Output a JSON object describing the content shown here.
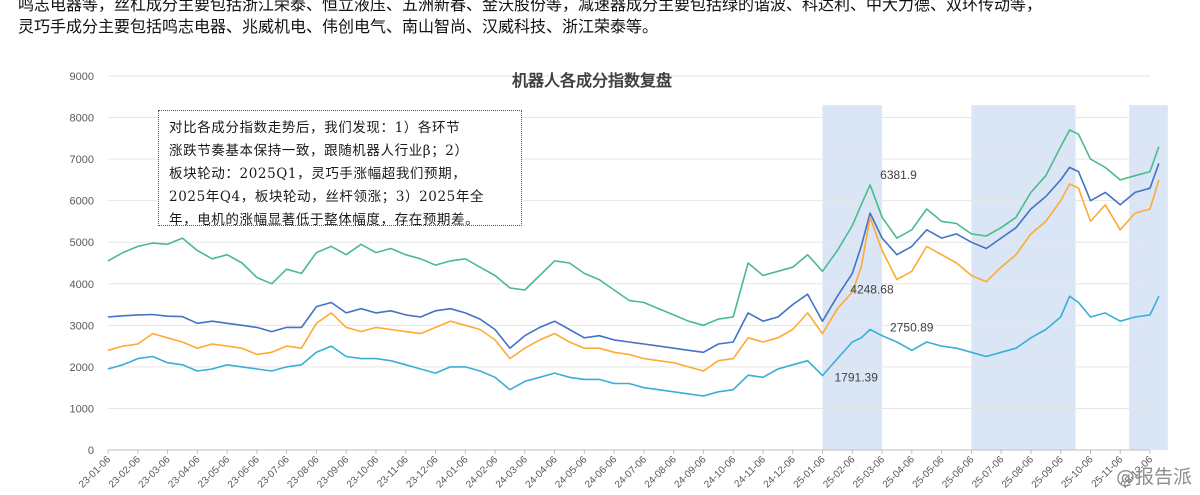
{
  "intro": {
    "line1": "鸣志电器等，丝杠成分主要包括浙江荣泰、恒立液压、五洲新春、金沃股份等，减速器成分主要包括绿的谐波、科达利、中大力德、双环传动等，",
    "line2": "灵巧手成分主要包括鸣志电器、兆威机电、伟创电气、南山智尚、汉威科技、浙江荣泰等。"
  },
  "note": {
    "lines": [
      "对比各成分指数走势后，我们发现：1）各环节",
      "涨跌节奏基本保持一致，跟随机器人行业β；2）",
      "板块轮动：2025Q1，灵巧手涨幅超我们预期，",
      "2025年Q4，板块轮动，丝杆领涨；3）2025年全",
      "年，电机的涨幅显著低于整体幅度，存在预期差。"
    ]
  },
  "watermark": "@报告派",
  "chart_data": {
    "type": "line",
    "title": "机器人各成分指数复盘",
    "ylim": [
      0,
      9000
    ],
    "yticks": [
      0,
      1000,
      2000,
      3000,
      4000,
      5000,
      6000,
      7000,
      8000,
      9000
    ],
    "x_range": [
      "2023-01",
      "2025-12"
    ],
    "x_ticks": [
      "23-01-06",
      "23-02-06",
      "23-03-06",
      "23-04-06",
      "23-05-06",
      "23-06-06",
      "23-07-06",
      "23-08-06",
      "23-09-06",
      "23-10-06",
      "23-11-06",
      "23-12-06",
      "24-01-06",
      "24-02-06",
      "24-03-06",
      "24-04-06",
      "24-05-06",
      "24-06-06",
      "24-07-06",
      "24-08-06",
      "24-09-06",
      "24-10-06",
      "24-11-06",
      "24-12-06",
      "25-01-06",
      "25-02-06",
      "25-03-06",
      "25-04-06",
      "25-05-06",
      "25-06-06",
      "25-07-06",
      "25-08-06",
      "25-09-06",
      "25-10-06",
      "25-11-06",
      "25-12-06"
    ],
    "shaded_ranges": [
      [
        24.0,
        26.0
      ],
      [
        29.0,
        32.5
      ],
      [
        34.3,
        35.6
      ]
    ],
    "grid": true,
    "legend": "none",
    "colors": {
      "green": "#4cbb8a",
      "blue": "#4472c4",
      "orange": "#ffaa33",
      "cyan": "#3aaed8",
      "shade": "#dae6f6"
    },
    "series": [
      {
        "color": "green",
        "points": [
          [
            0,
            4550
          ],
          [
            0.5,
            4750
          ],
          [
            1,
            4900
          ],
          [
            1.5,
            4980
          ],
          [
            2,
            4950
          ],
          [
            2.5,
            5100
          ],
          [
            3,
            4800
          ],
          [
            3.5,
            4600
          ],
          [
            4,
            4700
          ],
          [
            4.5,
            4500
          ],
          [
            5,
            4150
          ],
          [
            5.5,
            4000
          ],
          [
            6,
            4350
          ],
          [
            6.5,
            4250
          ],
          [
            7,
            4750
          ],
          [
            7.5,
            4900
          ],
          [
            8,
            4700
          ],
          [
            8.5,
            4950
          ],
          [
            9,
            4750
          ],
          [
            9.5,
            4850
          ],
          [
            10,
            4700
          ],
          [
            10.5,
            4600
          ],
          [
            11,
            4450
          ],
          [
            11.5,
            4550
          ],
          [
            12,
            4600
          ],
          [
            12.5,
            4400
          ],
          [
            13,
            4200
          ],
          [
            13.5,
            3900
          ],
          [
            14,
            3850
          ],
          [
            14.5,
            4200
          ],
          [
            15,
            4550
          ],
          [
            15.5,
            4500
          ],
          [
            16,
            4250
          ],
          [
            16.5,
            4100
          ],
          [
            17,
            3850
          ],
          [
            17.5,
            3600
          ],
          [
            18,
            3550
          ],
          [
            18.5,
            3400
          ],
          [
            19,
            3250
          ],
          [
            19.5,
            3100
          ],
          [
            20,
            3000
          ],
          [
            20.5,
            3150
          ],
          [
            21,
            3200
          ],
          [
            21.5,
            4500
          ],
          [
            22,
            4200
          ],
          [
            22.5,
            4300
          ],
          [
            23,
            4400
          ],
          [
            23.5,
            4700
          ],
          [
            24,
            4300
          ],
          [
            24.5,
            4800
          ],
          [
            25,
            5400
          ],
          [
            25.3,
            5900
          ],
          [
            25.6,
            6381.9
          ],
          [
            26,
            5600
          ],
          [
            26.5,
            5100
          ],
          [
            27,
            5300
          ],
          [
            27.5,
            5800
          ],
          [
            28,
            5500
          ],
          [
            28.5,
            5450
          ],
          [
            29,
            5200
          ],
          [
            29.5,
            5150
          ],
          [
            30,
            5350
          ],
          [
            30.5,
            5600
          ],
          [
            31,
            6200
          ],
          [
            31.5,
            6600
          ],
          [
            32,
            7300
          ],
          [
            32.3,
            7700
          ],
          [
            32.6,
            7600
          ],
          [
            33,
            7000
          ],
          [
            33.5,
            6800
          ],
          [
            34,
            6500
          ],
          [
            34.5,
            6600
          ],
          [
            35,
            6700
          ],
          [
            35.3,
            7300
          ]
        ]
      },
      {
        "color": "blue",
        "points": [
          [
            0,
            3200
          ],
          [
            0.5,
            3230
          ],
          [
            1,
            3250
          ],
          [
            1.5,
            3260
          ],
          [
            2,
            3220
          ],
          [
            2.5,
            3210
          ],
          [
            3,
            3050
          ],
          [
            3.5,
            3100
          ],
          [
            4,
            3050
          ],
          [
            4.5,
            3000
          ],
          [
            5,
            2950
          ],
          [
            5.5,
            2850
          ],
          [
            6,
            2950
          ],
          [
            6.5,
            2950
          ],
          [
            7,
            3450
          ],
          [
            7.5,
            3550
          ],
          [
            8,
            3300
          ],
          [
            8.5,
            3400
          ],
          [
            9,
            3300
          ],
          [
            9.5,
            3350
          ],
          [
            10,
            3250
          ],
          [
            10.5,
            3200
          ],
          [
            11,
            3350
          ],
          [
            11.5,
            3400
          ],
          [
            12,
            3300
          ],
          [
            12.5,
            3150
          ],
          [
            13,
            2900
          ],
          [
            13.5,
            2450
          ],
          [
            14,
            2750
          ],
          [
            14.5,
            2950
          ],
          [
            15,
            3100
          ],
          [
            15.5,
            2900
          ],
          [
            16,
            2700
          ],
          [
            16.5,
            2750
          ],
          [
            17,
            2650
          ],
          [
            17.5,
            2600
          ],
          [
            18,
            2550
          ],
          [
            18.5,
            2500
          ],
          [
            19,
            2450
          ],
          [
            19.5,
            2400
          ],
          [
            20,
            2350
          ],
          [
            20.5,
            2550
          ],
          [
            21,
            2600
          ],
          [
            21.5,
            3300
          ],
          [
            22,
            3100
          ],
          [
            22.5,
            3200
          ],
          [
            23,
            3500
          ],
          [
            23.5,
            3750
          ],
          [
            24,
            3100
          ],
          [
            24.5,
            3700
          ],
          [
            25,
            4248.68
          ],
          [
            25.3,
            4900
          ],
          [
            25.6,
            5700
          ],
          [
            26,
            5100
          ],
          [
            26.5,
            4700
          ],
          [
            27,
            4900
          ],
          [
            27.5,
            5300
          ],
          [
            28,
            5100
          ],
          [
            28.5,
            5200
          ],
          [
            29,
            5000
          ],
          [
            29.5,
            4850
          ],
          [
            30,
            5100
          ],
          [
            30.5,
            5350
          ],
          [
            31,
            5800
          ],
          [
            31.5,
            6100
          ],
          [
            32,
            6500
          ],
          [
            32.3,
            6800
          ],
          [
            32.6,
            6700
          ],
          [
            33,
            6000
          ],
          [
            33.5,
            6200
          ],
          [
            34,
            5900
          ],
          [
            34.5,
            6200
          ],
          [
            35,
            6300
          ],
          [
            35.3,
            6900
          ]
        ]
      },
      {
        "color": "orange",
        "points": [
          [
            0,
            2400
          ],
          [
            0.5,
            2500
          ],
          [
            1,
            2550
          ],
          [
            1.5,
            2800
          ],
          [
            2,
            2700
          ],
          [
            2.5,
            2600
          ],
          [
            3,
            2450
          ],
          [
            3.5,
            2550
          ],
          [
            4,
            2500
          ],
          [
            4.5,
            2450
          ],
          [
            5,
            2300
          ],
          [
            5.5,
            2350
          ],
          [
            6,
            2500
          ],
          [
            6.5,
            2450
          ],
          [
            7,
            3050
          ],
          [
            7.5,
            3300
          ],
          [
            8,
            2950
          ],
          [
            8.5,
            2850
          ],
          [
            9,
            2950
          ],
          [
            9.5,
            2900
          ],
          [
            10,
            2850
          ],
          [
            10.5,
            2800
          ],
          [
            11,
            2950
          ],
          [
            11.5,
            3100
          ],
          [
            12,
            3000
          ],
          [
            12.5,
            2900
          ],
          [
            13,
            2650
          ],
          [
            13.5,
            2200
          ],
          [
            14,
            2450
          ],
          [
            14.5,
            2650
          ],
          [
            15,
            2800
          ],
          [
            15.5,
            2600
          ],
          [
            16,
            2450
          ],
          [
            16.5,
            2450
          ],
          [
            17,
            2350
          ],
          [
            17.5,
            2300
          ],
          [
            18,
            2200
          ],
          [
            18.5,
            2150
          ],
          [
            19,
            2100
          ],
          [
            19.5,
            2000
          ],
          [
            20,
            1900
          ],
          [
            20.5,
            2150
          ],
          [
            21,
            2200
          ],
          [
            21.5,
            2700
          ],
          [
            22,
            2600
          ],
          [
            22.5,
            2700
          ],
          [
            23,
            2900
          ],
          [
            23.5,
            3300
          ],
          [
            24,
            2800
          ],
          [
            24.5,
            3400
          ],
          [
            25,
            3800
          ],
          [
            25.3,
            4400
          ],
          [
            25.6,
            5600
          ],
          [
            26,
            4800
          ],
          [
            26.5,
            4100
          ],
          [
            27,
            4300
          ],
          [
            27.5,
            4900
          ],
          [
            28,
            4700
          ],
          [
            28.5,
            4500
          ],
          [
            29,
            4200
          ],
          [
            29.5,
            4050
          ],
          [
            30,
            4400
          ],
          [
            30.5,
            4700
          ],
          [
            31,
            5200
          ],
          [
            31.5,
            5500
          ],
          [
            32,
            6000
          ],
          [
            32.3,
            6400
          ],
          [
            32.6,
            6300
          ],
          [
            33,
            5500
          ],
          [
            33.5,
            5900
          ],
          [
            34,
            5300
          ],
          [
            34.5,
            5700
          ],
          [
            35,
            5800
          ],
          [
            35.3,
            6500
          ]
        ]
      },
      {
        "color": "cyan",
        "points": [
          [
            0,
            1950
          ],
          [
            0.5,
            2050
          ],
          [
            1,
            2200
          ],
          [
            1.5,
            2250
          ],
          [
            2,
            2100
          ],
          [
            2.5,
            2050
          ],
          [
            3,
            1900
          ],
          [
            3.5,
            1950
          ],
          [
            4,
            2050
          ],
          [
            4.5,
            2000
          ],
          [
            5,
            1950
          ],
          [
            5.5,
            1900
          ],
          [
            6,
            2000
          ],
          [
            6.5,
            2050
          ],
          [
            7,
            2350
          ],
          [
            7.5,
            2500
          ],
          [
            8,
            2250
          ],
          [
            8.5,
            2200
          ],
          [
            9,
            2200
          ],
          [
            9.5,
            2150
          ],
          [
            10,
            2050
          ],
          [
            10.5,
            1950
          ],
          [
            11,
            1850
          ],
          [
            11.5,
            2000
          ],
          [
            12,
            2000
          ],
          [
            12.5,
            1900
          ],
          [
            13,
            1750
          ],
          [
            13.5,
            1450
          ],
          [
            14,
            1650
          ],
          [
            14.5,
            1750
          ],
          [
            15,
            1850
          ],
          [
            15.5,
            1750
          ],
          [
            16,
            1700
          ],
          [
            16.5,
            1700
          ],
          [
            17,
            1600
          ],
          [
            17.5,
            1600
          ],
          [
            18,
            1500
          ],
          [
            18.5,
            1450
          ],
          [
            19,
            1400
          ],
          [
            19.5,
            1350
          ],
          [
            20,
            1300
          ],
          [
            20.5,
            1400
          ],
          [
            21,
            1450
          ],
          [
            21.5,
            1800
          ],
          [
            22,
            1750
          ],
          [
            22.5,
            1950
          ],
          [
            23,
            2050
          ],
          [
            23.5,
            2150
          ],
          [
            24,
            1791.39
          ],
          [
            24.5,
            2200
          ],
          [
            25,
            2600
          ],
          [
            25.3,
            2700
          ],
          [
            25.6,
            2900
          ],
          [
            26,
            2750.89
          ],
          [
            26.5,
            2600
          ],
          [
            27,
            2400
          ],
          [
            27.5,
            2600
          ],
          [
            28,
            2500
          ],
          [
            28.5,
            2450
          ],
          [
            29,
            2350
          ],
          [
            29.5,
            2250
          ],
          [
            30,
            2350
          ],
          [
            30.5,
            2450
          ],
          [
            31,
            2700
          ],
          [
            31.5,
            2900
          ],
          [
            32,
            3200
          ],
          [
            32.3,
            3700
          ],
          [
            32.6,
            3550
          ],
          [
            33,
            3200
          ],
          [
            33.5,
            3300
          ],
          [
            34,
            3100
          ],
          [
            34.5,
            3200
          ],
          [
            35,
            3250
          ],
          [
            35.3,
            3700
          ]
        ]
      }
    ],
    "data_labels": [
      {
        "value": "6381.9",
        "series": "green",
        "x": 25.6,
        "y": 6381.9
      },
      {
        "value": "4248.68",
        "series": "blue",
        "x": 25.0,
        "y": 4248.68
      },
      {
        "value": "2750.89",
        "series": "cyan",
        "x": 26.0,
        "y": 2750.89
      },
      {
        "value": "1791.39",
        "series": "cyan",
        "x": 24.0,
        "y": 1791.39
      }
    ]
  }
}
